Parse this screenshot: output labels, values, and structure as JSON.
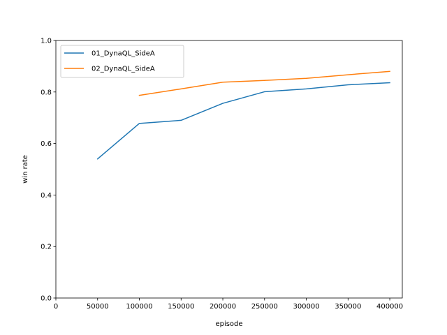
{
  "chart_data": {
    "type": "line",
    "xlabel": "episode",
    "ylabel": "win rate",
    "xlim": [
      0,
      415000
    ],
    "ylim": [
      0.0,
      1.0
    ],
    "x_ticks": [
      0,
      50000,
      100000,
      150000,
      200000,
      250000,
      300000,
      350000,
      400000
    ],
    "x_tick_labels": [
      "0",
      "50000",
      "100000",
      "150000",
      "200000",
      "250000",
      "300000",
      "350000",
      "400000"
    ],
    "y_ticks": [
      0.0,
      0.2,
      0.4,
      0.6,
      0.8,
      1.0
    ],
    "y_tick_labels": [
      "0.0",
      "0.2",
      "0.4",
      "0.6",
      "0.8",
      "1.0"
    ],
    "grid": false,
    "legend_position": "top-left",
    "series": [
      {
        "name": "01_DynaQL_SideA",
        "color": "#1f77b4",
        "x": [
          50000,
          100000,
          150000,
          200000,
          250000,
          300000,
          350000,
          400000
        ],
        "y": [
          0.54,
          0.678,
          0.69,
          0.756,
          0.801,
          0.812,
          0.828,
          0.836
        ]
      },
      {
        "name": "02_DynaQL_SideA",
        "color": "#ff7f0e",
        "x": [
          100000,
          150000,
          200000,
          250000,
          300000,
          350000,
          400000
        ],
        "y": [
          0.787,
          0.812,
          0.838,
          0.845,
          0.853,
          0.867,
          0.88
        ]
      }
    ]
  }
}
